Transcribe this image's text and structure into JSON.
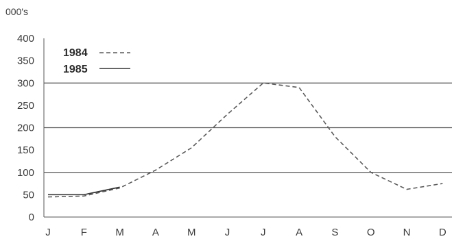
{
  "chart_data": {
    "type": "line",
    "unit_label": "000's",
    "categories": [
      "J",
      "F",
      "M",
      "A",
      "M",
      "J",
      "J",
      "A",
      "S",
      "O",
      "N",
      "D"
    ],
    "yticks": [
      0,
      50,
      100,
      150,
      200,
      250,
      300,
      350,
      400
    ],
    "ylim": [
      0,
      400
    ],
    "grid_lines": [
      100,
      200,
      300
    ],
    "legend_position": "top-left",
    "series": [
      {
        "name": "1984",
        "style": "dashed",
        "color": "#5a5a5a",
        "values": [
          45,
          47,
          65,
          105,
          155,
          230,
          300,
          290,
          180,
          100,
          62,
          75
        ]
      },
      {
        "name": "1985",
        "style": "solid",
        "color": "#333333",
        "values": [
          50,
          50,
          67,
          null,
          null,
          null,
          null,
          null,
          null,
          null,
          null,
          null
        ]
      }
    ]
  }
}
